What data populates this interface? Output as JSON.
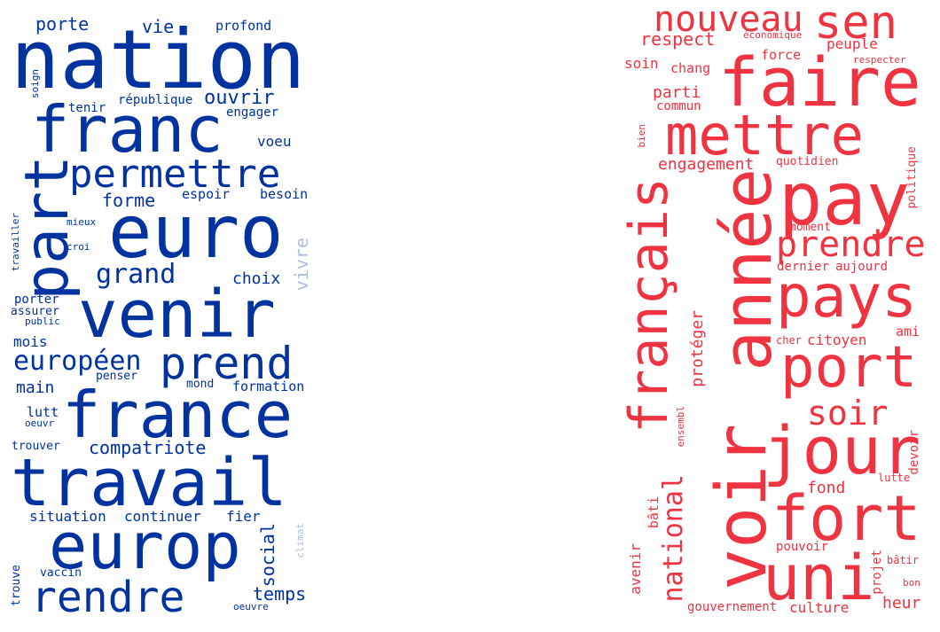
{
  "colors": {
    "blue": "#0032A0",
    "blue_light": "#AEBCDF",
    "red": "#EF3340"
  },
  "left_cloud": {
    "words": [
      {
        "text": "nation",
        "c": "blue"
      },
      {
        "text": "franc",
        "c": "blue"
      },
      {
        "text": "part",
        "c": "blue"
      },
      {
        "text": "euro",
        "c": "blue"
      },
      {
        "text": "venir",
        "c": "blue"
      },
      {
        "text": "permettre",
        "c": "blue"
      },
      {
        "text": "prend",
        "c": "blue"
      },
      {
        "text": "france",
        "c": "blue"
      },
      {
        "text": "travail",
        "c": "blue"
      },
      {
        "text": "europ",
        "c": "blue"
      },
      {
        "text": "rendre",
        "c": "blue"
      },
      {
        "text": "grand",
        "c": "blue"
      },
      {
        "text": "européen",
        "c": "blue"
      },
      {
        "text": "compatriote",
        "c": "blue"
      },
      {
        "text": "porte",
        "c": "blue"
      },
      {
        "text": "vie",
        "c": "blue"
      },
      {
        "text": "ouvrir",
        "c": "blue"
      },
      {
        "text": "forme",
        "c": "blue"
      },
      {
        "text": "temps",
        "c": "blue"
      },
      {
        "text": "social",
        "c": "blue"
      },
      {
        "text": "vivre",
        "c": "blue_light"
      },
      {
        "text": "profond",
        "c": "blue"
      },
      {
        "text": "république",
        "c": "blue"
      },
      {
        "text": "tenir",
        "c": "blue"
      },
      {
        "text": "engager",
        "c": "blue"
      },
      {
        "text": "voeu",
        "c": "blue"
      },
      {
        "text": "espoir",
        "c": "blue"
      },
      {
        "text": "besoin",
        "c": "blue"
      },
      {
        "text": "choix",
        "c": "blue"
      },
      {
        "text": "mois",
        "c": "blue"
      },
      {
        "text": "main",
        "c": "blue"
      },
      {
        "text": "formation",
        "c": "blue"
      },
      {
        "text": "mond",
        "c": "blue"
      },
      {
        "text": "penser",
        "c": "blue"
      },
      {
        "text": "lutt",
        "c": "blue"
      },
      {
        "text": "oeuvr",
        "c": "blue"
      },
      {
        "text": "trouver",
        "c": "blue"
      },
      {
        "text": "situation",
        "c": "blue"
      },
      {
        "text": "continuer",
        "c": "blue"
      },
      {
        "text": "fier",
        "c": "blue"
      },
      {
        "text": "vaccin",
        "c": "blue"
      },
      {
        "text": "trouve",
        "c": "blue"
      },
      {
        "text": "oeuvre",
        "c": "blue"
      },
      {
        "text": "climat",
        "c": "blue_light"
      },
      {
        "text": "soign",
        "c": "blue"
      },
      {
        "text": "travailler",
        "c": "blue"
      },
      {
        "text": "mieux",
        "c": "blue"
      },
      {
        "text": "croi",
        "c": "blue"
      },
      {
        "text": "porter",
        "c": "blue"
      },
      {
        "text": "assurer",
        "c": "blue"
      },
      {
        "text": "public",
        "c": "blue"
      }
    ]
  },
  "right_cloud": {
    "words": [
      {
        "text": "faire",
        "c": "red"
      },
      {
        "text": "mettre",
        "c": "red"
      },
      {
        "text": "pay",
        "c": "red"
      },
      {
        "text": "année",
        "c": "red"
      },
      {
        "text": "voir",
        "c": "red"
      },
      {
        "text": "pays",
        "c": "red"
      },
      {
        "text": "port",
        "c": "red"
      },
      {
        "text": "jour",
        "c": "red"
      },
      {
        "text": "fort",
        "c": "red"
      },
      {
        "text": "uni",
        "c": "red"
      },
      {
        "text": "français",
        "c": "red"
      },
      {
        "text": "nouveau",
        "c": "red"
      },
      {
        "text": "sen",
        "c": "red"
      },
      {
        "text": "prendre",
        "c": "red"
      },
      {
        "text": "soir",
        "c": "red"
      },
      {
        "text": "national",
        "c": "red"
      },
      {
        "text": "respect",
        "c": "red"
      },
      {
        "text": "économique",
        "c": "red"
      },
      {
        "text": "peuple",
        "c": "red"
      },
      {
        "text": "force",
        "c": "red"
      },
      {
        "text": "respecter",
        "c": "red"
      },
      {
        "text": "soin",
        "c": "red"
      },
      {
        "text": "chang",
        "c": "red"
      },
      {
        "text": "parti",
        "c": "red"
      },
      {
        "text": "commun",
        "c": "red"
      },
      {
        "text": "bien",
        "c": "red"
      },
      {
        "text": "engagement",
        "c": "red"
      },
      {
        "text": "quotidien",
        "c": "red"
      },
      {
        "text": "politique",
        "c": "red"
      },
      {
        "text": "moment",
        "c": "red"
      },
      {
        "text": "dernier",
        "c": "red"
      },
      {
        "text": "aujourd",
        "c": "red"
      },
      {
        "text": "protéger",
        "c": "red"
      },
      {
        "text": "cher",
        "c": "red"
      },
      {
        "text": "citoyen",
        "c": "red"
      },
      {
        "text": "ami",
        "c": "red"
      },
      {
        "text": "ensembl",
        "c": "red"
      },
      {
        "text": "lutte",
        "c": "red"
      },
      {
        "text": "devoir",
        "c": "red"
      },
      {
        "text": "fond",
        "c": "red"
      },
      {
        "text": "avenir",
        "c": "red"
      },
      {
        "text": "bâti",
        "c": "red"
      },
      {
        "text": "projet",
        "c": "red"
      },
      {
        "text": "pouvoir",
        "c": "red"
      },
      {
        "text": "bâtir",
        "c": "red"
      },
      {
        "text": "bon",
        "c": "red"
      },
      {
        "text": "gouvernement",
        "c": "red"
      },
      {
        "text": "culture",
        "c": "red"
      },
      {
        "text": "heur",
        "c": "red"
      }
    ]
  }
}
